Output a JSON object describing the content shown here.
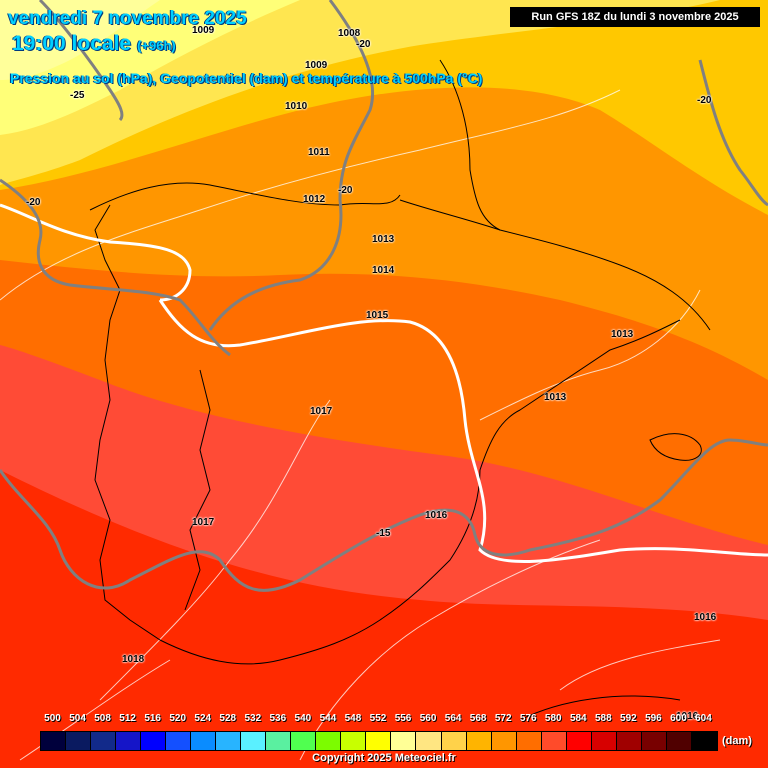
{
  "header": {
    "title_date": "vendredi 7 novembre 2025",
    "title_time": "19:00 locale",
    "lead": "(+96h)",
    "subtitle": "Pression au sol (hPa), Geopotentiel (dam) et température à 500hPa (°C)",
    "run": "Run GFS 18Z du lundi 3 novembre 2025"
  },
  "pressure_labels": [
    "1009",
    "1008",
    "1009",
    "1010",
    "1011",
    "1012",
    "1013",
    "1014",
    "1015",
    "1013",
    "1013",
    "1017",
    "1016",
    "1017",
    "1016",
    "1018",
    "1016"
  ],
  "temp_labels": [
    "-20",
    "-25",
    "-20",
    "-20",
    "-20",
    "-15"
  ],
  "legend": {
    "values": [
      "500",
      "504",
      "508",
      "512",
      "516",
      "520",
      "524",
      "528",
      "532",
      "536",
      "540",
      "544",
      "548",
      "552",
      "556",
      "560",
      "564",
      "568",
      "572",
      "576",
      "580",
      "584",
      "588",
      "592",
      "596",
      "600",
      "604"
    ],
    "colors": [
      "#00003c",
      "#0a1a60",
      "#122a8a",
      "#1515c8",
      "#0000ff",
      "#1450ff",
      "#0a8cff",
      "#28b4ff",
      "#5af0ff",
      "#5af0a0",
      "#50ff50",
      "#7cfc00",
      "#c8ff00",
      "#ffff00",
      "#ffff96",
      "#ffe682",
      "#ffd24a",
      "#ffb400",
      "#ff9600",
      "#ff6e00",
      "#ff4b2a",
      "#ff0000",
      "#d70000",
      "#a00000",
      "#780000",
      "#500000",
      "#000000"
    ],
    "unit": "(dam)"
  },
  "copyright": "Copyright 2025 Meteociel.fr"
}
